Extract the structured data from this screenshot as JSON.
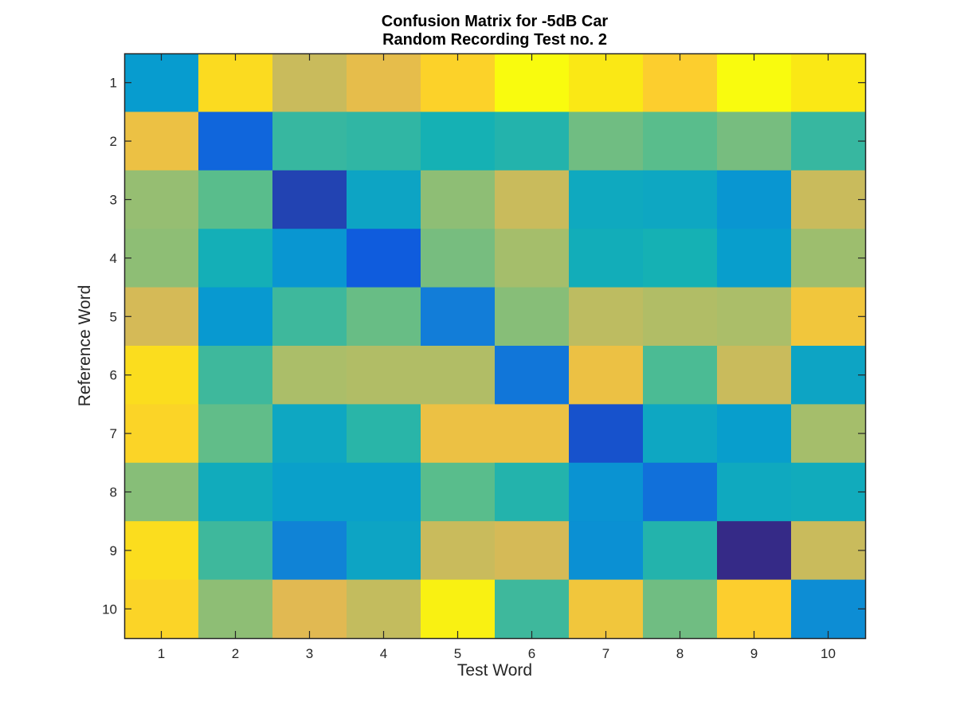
{
  "chart_data": {
    "type": "heatmap",
    "title": [
      "Confusion Matrix for -5dB Car",
      "Random Recording Test no. 2"
    ],
    "xlabel": "Test Word",
    "ylabel": "Reference Word",
    "x_categories": [
      "1",
      "2",
      "3",
      "4",
      "5",
      "6",
      "7",
      "8",
      "9",
      "10"
    ],
    "y_categories": [
      "1",
      "2",
      "3",
      "4",
      "5",
      "6",
      "7",
      "8",
      "9",
      "10"
    ],
    "colormap": "parula",
    "value_range": [
      0,
      1
    ],
    "grid": false,
    "values": [
      [
        0.3,
        0.86,
        0.66,
        0.72,
        0.82,
        1.0,
        0.92,
        0.8,
        1.0,
        0.92
      ],
      [
        0.74,
        0.13,
        0.45,
        0.44,
        0.4,
        0.42,
        0.53,
        0.5,
        0.54,
        0.45
      ],
      [
        0.58,
        0.5,
        0.05,
        0.34,
        0.57,
        0.66,
        0.36,
        0.35,
        0.28,
        0.66
      ],
      [
        0.57,
        0.39,
        0.28,
        0.1,
        0.54,
        0.6,
        0.38,
        0.4,
        0.31,
        0.59
      ],
      [
        0.68,
        0.29,
        0.46,
        0.52,
        0.2,
        0.56,
        0.64,
        0.62,
        0.61,
        0.76
      ],
      [
        0.87,
        0.46,
        0.61,
        0.62,
        0.62,
        0.18,
        0.74,
        0.48,
        0.66,
        0.34
      ],
      [
        0.83,
        0.51,
        0.35,
        0.43,
        0.74,
        0.74,
        0.08,
        0.35,
        0.31,
        0.6
      ],
      [
        0.56,
        0.37,
        0.32,
        0.32,
        0.5,
        0.42,
        0.27,
        0.16,
        0.36,
        0.37
      ],
      [
        0.87,
        0.46,
        0.22,
        0.34,
        0.66,
        0.68,
        0.26,
        0.42,
        0.0,
        0.66
      ],
      [
        0.83,
        0.57,
        0.7,
        0.65,
        0.96,
        0.46,
        0.76,
        0.53,
        0.8,
        0.25
      ]
    ]
  }
}
